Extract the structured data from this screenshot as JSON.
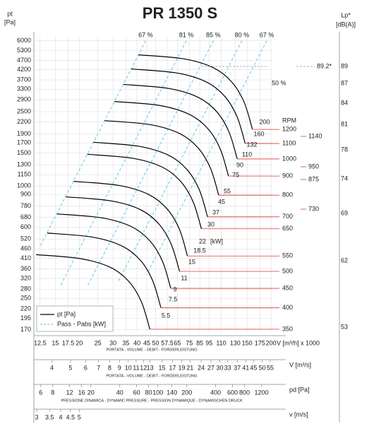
{
  "chart_data": {
    "type": "line",
    "title": "PR 1350 S",
    "y_label": "pt",
    "y_unit": "[Pa]",
    "x_scale": "log",
    "y_scale": "log",
    "grid": true,
    "xlim": [
      11.5,
      205
    ],
    "ylim": [
      165,
      6300
    ],
    "xticks": [
      12.5,
      15,
      17.5,
      20,
      25,
      30,
      35,
      40,
      45,
      50,
      57.5,
      65,
      75,
      85,
      95,
      110,
      130,
      150,
      175,
      200
    ],
    "yticks": [
      6000,
      5300,
      4700,
      4200,
      3700,
      3300,
      2900,
      2500,
      2200,
      1900,
      1700,
      1500,
      1300,
      1150,
      1000,
      900,
      780,
      680,
      600,
      520,
      460,
      410,
      360,
      320,
      280,
      250,
      220,
      195,
      170
    ],
    "x_label": "V [m³/h] x 1000",
    "x_title": "PORTATA - VOLUME - DEBIT - FORDERLEISTUNG",
    "rpm_label": "RPM",
    "rpm_color": "#e53935",
    "series": [
      {
        "name": "1200",
        "color": "#000000",
        "x": [
          40.7,
          70,
          100,
          125,
          145,
          160
        ],
        "values": [
          5040,
          4800,
          4300,
          3600,
          2800,
          2010
        ]
      },
      {
        "name": "1100",
        "color": "#000000",
        "x": [
          37.3,
          64.2,
          91.7,
          114.6,
          132.9,
          146.7
        ],
        "values": [
          4235,
          4033,
          3613,
          3025,
          2353,
          1689
        ]
      },
      {
        "name": "1000",
        "color": "#000000",
        "x": [
          33.9,
          58.3,
          83.3,
          104.2,
          120.8,
          133.3
        ],
        "values": [
          3500,
          3333,
          2986,
          2500,
          1944,
          1396
        ]
      },
      {
        "name": "900",
        "color": "#000000",
        "x": [
          30.5,
          52.5,
          75,
          93.8,
          108.8,
          120
        ],
        "values": [
          2835,
          2700,
          2419,
          2025,
          1575,
          1131
        ]
      },
      {
        "name": "800",
        "color": "#000000",
        "x": [
          27.1,
          46.7,
          66.7,
          83.3,
          96.7,
          106.7
        ],
        "values": [
          2240,
          2133,
          1911,
          1600,
          1244,
          893
        ]
      },
      {
        "name": "700",
        "color": "#000000",
        "x": [
          23.7,
          40.8,
          58.3,
          72.9,
          84.6,
          93.3
        ],
        "values": [
          1715,
          1633,
          1463,
          1225,
          953,
          684
        ]
      },
      {
        "name": "650",
        "color": "#000000",
        "x": [
          22.0,
          37.9,
          54.2,
          67.7,
          78.5,
          86.7
        ],
        "values": [
          1479,
          1408,
          1262,
          1056,
          822,
          590
        ]
      },
      {
        "name": "550",
        "color": "#000000",
        "x": [
          18.7,
          32.1,
          45.8,
          57.3,
          66.5,
          73.3
        ],
        "values": [
          1059,
          1008,
          903,
          756,
          588,
          422
        ]
      },
      {
        "name": "500",
        "color": "#000000",
        "x": [
          17.0,
          29.2,
          41.7,
          52.1,
          60.4,
          66.7
        ],
        "values": [
          875,
          833,
          747,
          625,
          486,
          349
        ]
      },
      {
        "name": "450",
        "color": "#000000",
        "x": [
          15.3,
          26.3,
          37.5,
          46.9,
          54.4,
          60
        ],
        "values": [
          709,
          675,
          605,
          506,
          394,
          283
        ]
      },
      {
        "name": "400",
        "color": "#000000",
        "x": [
          13.6,
          23.3,
          33.3,
          41.7,
          48.3,
          53.3
        ],
        "values": [
          560,
          533,
          478,
          400,
          311,
          223
        ]
      },
      {
        "name": "350",
        "color": "#000000",
        "x": [
          11.9,
          20.4,
          29.2,
          36.5,
          42.3,
          46.7
        ],
        "values": [
          429,
          408,
          366,
          306,
          238,
          171
        ]
      }
    ],
    "efficiency_color": "#4fc3f7",
    "efficiency_lines": [
      {
        "label": "67 %",
        "x": [
          44.4,
          12.5
        ],
        "values": [
          6000,
          476
        ]
      },
      {
        "label": "81 %",
        "x": [
          72.3,
          16
        ],
        "values": [
          6000,
          294
        ]
      },
      {
        "label": "85 %",
        "x": [
          100,
          22
        ],
        "values": [
          6000,
          290
        ]
      },
      {
        "label": "80 %",
        "x": [
          141,
          32
        ],
        "values": [
          6000,
          309
        ]
      },
      {
        "label": "67 %",
        "x": [
          190,
          45
        ],
        "values": [
          6000,
          337
        ]
      }
    ],
    "efficiency_note": "50 %",
    "power_labels": [
      200,
      160,
      132,
      110,
      90,
      75,
      55,
      45,
      37,
      30,
      22,
      18.5,
      15,
      11,
      9,
      7.5,
      5.5
    ],
    "power_unit": "[kW]",
    "legend": {
      "position": "lower left",
      "entries": [
        "pt [Pa]",
        "Pass - Pabs [kW]"
      ]
    },
    "lp_axis": {
      "label": "Lp*",
      "unit": "[dB(A)]",
      "ticks": [
        89,
        87,
        84,
        81,
        78,
        74,
        69,
        62,
        53
      ],
      "marker": "89.2*"
    },
    "side_rpm": [
      1140,
      950,
      875,
      730
    ],
    "secondary_axes": [
      {
        "label": "V [m³/s]",
        "xlim": [
          3.194,
          56.94
        ],
        "ticks": [
          4,
          5,
          6,
          7,
          8,
          9,
          10,
          11,
          12,
          13,
          15,
          17,
          19,
          21,
          24,
          27,
          30,
          33,
          37,
          41,
          45,
          50,
          55
        ],
        "title": "PORTATA - VOLUME - DEBIT - FORDERLEISTUNG"
      },
      {
        "label": "pd [Pa]",
        "xlim": [
          5.0,
          1588
        ],
        "ticks": [
          6,
          8,
          12,
          16,
          20,
          40,
          60,
          80,
          100,
          140,
          200,
          400,
          600,
          800,
          1200
        ],
        "title": "PRESSIONE DINAMICA - DYNAMIC PRESSURE - PRESSION DYNAMIQUE - DYNAMISCHEN DRUCK"
      },
      {
        "label": "v [m/s]",
        "xlim": [
          2.875,
          51.25
        ],
        "ticks": [
          3,
          3.5,
          4,
          4.5,
          5
        ]
      }
    ]
  }
}
